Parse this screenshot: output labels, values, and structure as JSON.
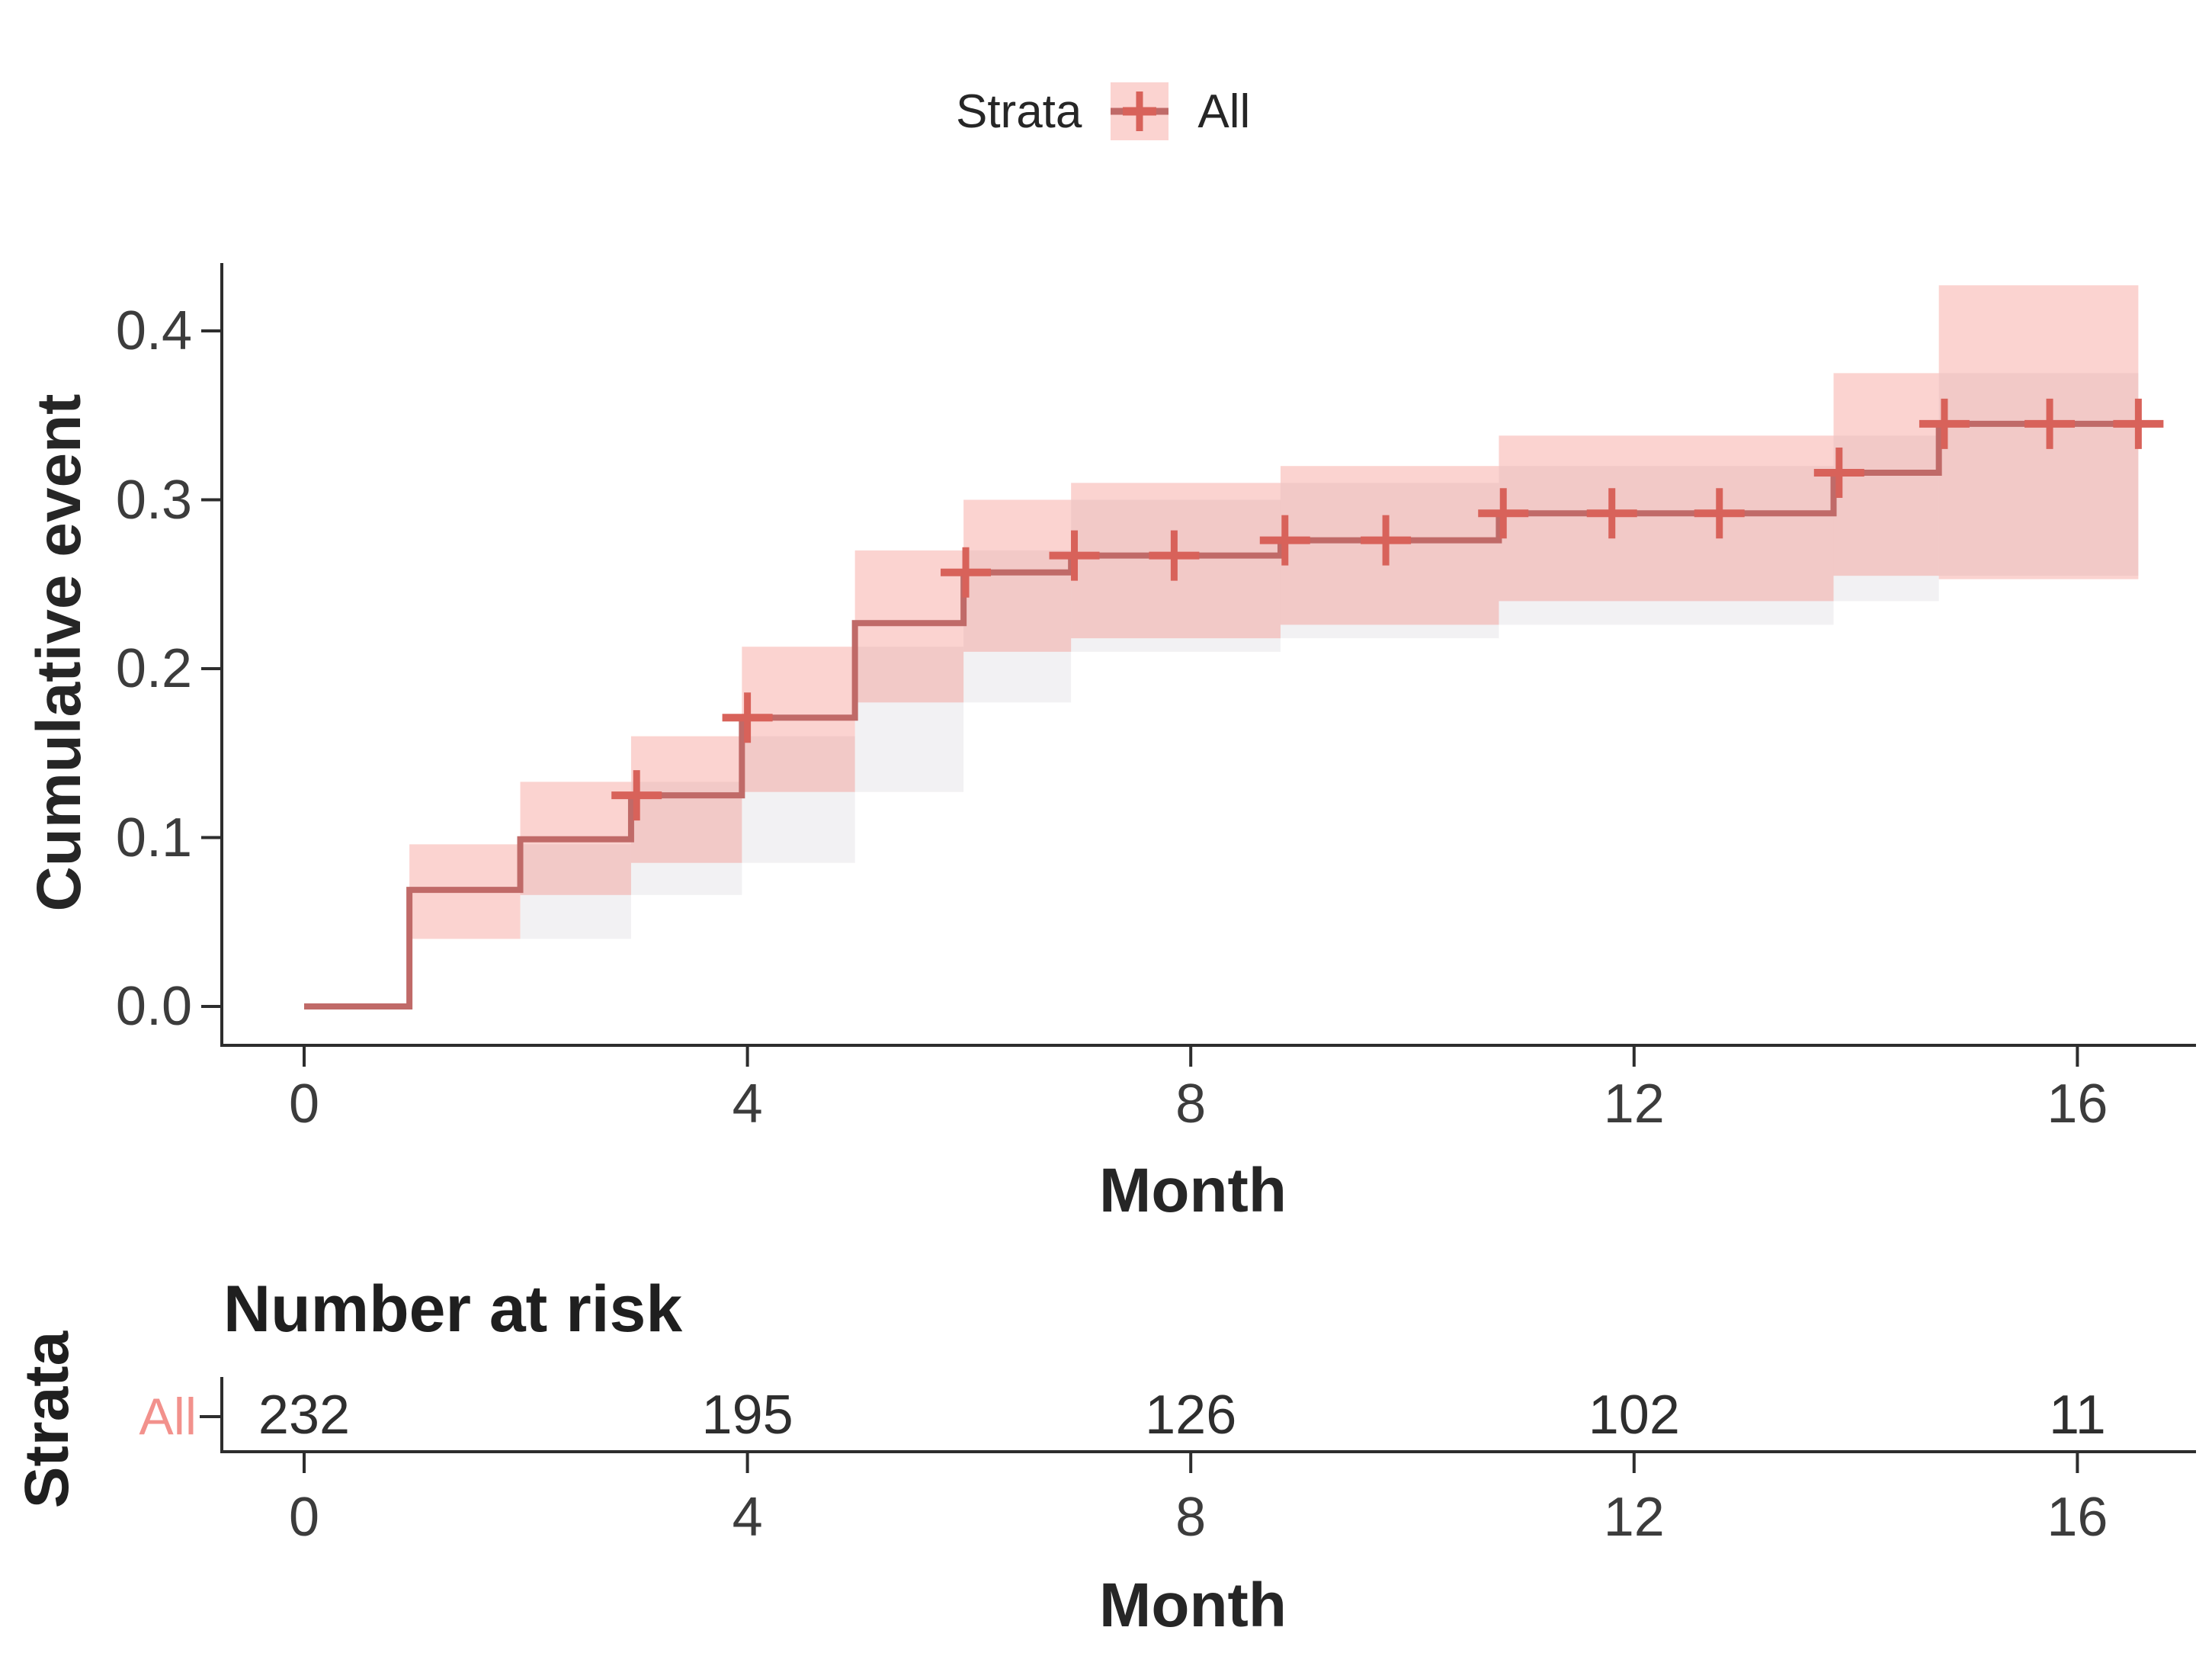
{
  "legend": {
    "title": "Strata",
    "item_label": "All"
  },
  "chart_data": {
    "type": "line",
    "subtype": "cumulative-incidence-step-curve-with-confidence-band",
    "title": "",
    "xlabel": "Month",
    "ylabel": "Cumulative event",
    "xlim": [
      0,
      17.1
    ],
    "ylim": [
      0,
      0.45
    ],
    "xticks": [
      0,
      4,
      8,
      12,
      16
    ],
    "yticks": [
      "0.0",
      "0.1",
      "0.2",
      "0.3",
      "0.4"
    ],
    "grid": "off",
    "legend_position": "top",
    "series": [
      {
        "name": "All",
        "steps": [
          [
            0,
            0.0
          ],
          [
            0.95,
            0.069
          ],
          [
            1.95,
            0.099
          ],
          [
            2.95,
            0.125
          ],
          [
            3.95,
            0.171
          ],
          [
            4.97,
            0.227
          ],
          [
            5.95,
            0.257
          ],
          [
            6.92,
            0.267
          ],
          [
            8.81,
            0.276
          ],
          [
            10.78,
            0.292
          ],
          [
            13.8,
            0.316
          ],
          [
            14.75,
            0.345
          ]
        ],
        "end_time": 16.55,
        "censor_marks": [
          [
            3.0,
            0.125
          ],
          [
            4.0,
            0.171
          ],
          [
            5.97,
            0.257
          ],
          [
            6.95,
            0.267
          ],
          [
            7.85,
            0.267
          ],
          [
            8.85,
            0.276
          ],
          [
            9.76,
            0.276
          ],
          [
            10.82,
            0.292
          ],
          [
            11.8,
            0.292
          ],
          [
            12.77,
            0.292
          ],
          [
            13.85,
            0.316
          ],
          [
            14.8,
            0.345
          ],
          [
            15.75,
            0.345
          ],
          [
            16.55,
            0.345
          ]
        ],
        "confidence_band": [
          [
            0.95,
            1.95,
            0.04,
            0.096
          ],
          [
            1.95,
            2.95,
            0.066,
            0.133
          ],
          [
            2.95,
            3.95,
            0.085,
            0.16
          ],
          [
            3.95,
            4.97,
            0.127,
            0.213
          ],
          [
            4.97,
            5.95,
            0.18,
            0.27
          ],
          [
            5.95,
            6.92,
            0.21,
            0.3
          ],
          [
            6.92,
            8.81,
            0.218,
            0.31
          ],
          [
            8.81,
            10.78,
            0.226,
            0.32
          ],
          [
            10.78,
            13.8,
            0.24,
            0.338
          ],
          [
            13.8,
            14.75,
            0.255,
            0.375
          ],
          [
            14.75,
            16.55,
            0.253,
            0.427
          ]
        ]
      }
    ],
    "colors": {
      "line": "#C06A68",
      "censor": "#D8625A",
      "band": "rgba(242,110,100,0.30)",
      "band_overlap": "rgba(130,120,135,0.10)",
      "axis": "#2d2d2d",
      "tick_text": "#3c3c3c",
      "strata_label": "#F2918C",
      "legend_key_bg": "#FBD3D0"
    }
  },
  "risk_table": {
    "title": "Number at risk",
    "axis_label": "Strata",
    "row_label": "All",
    "columns": [
      0,
      4,
      8,
      12,
      16
    ],
    "values": [
      "232",
      "195",
      "126",
      "102",
      "11"
    ],
    "xlabel": "Month"
  }
}
